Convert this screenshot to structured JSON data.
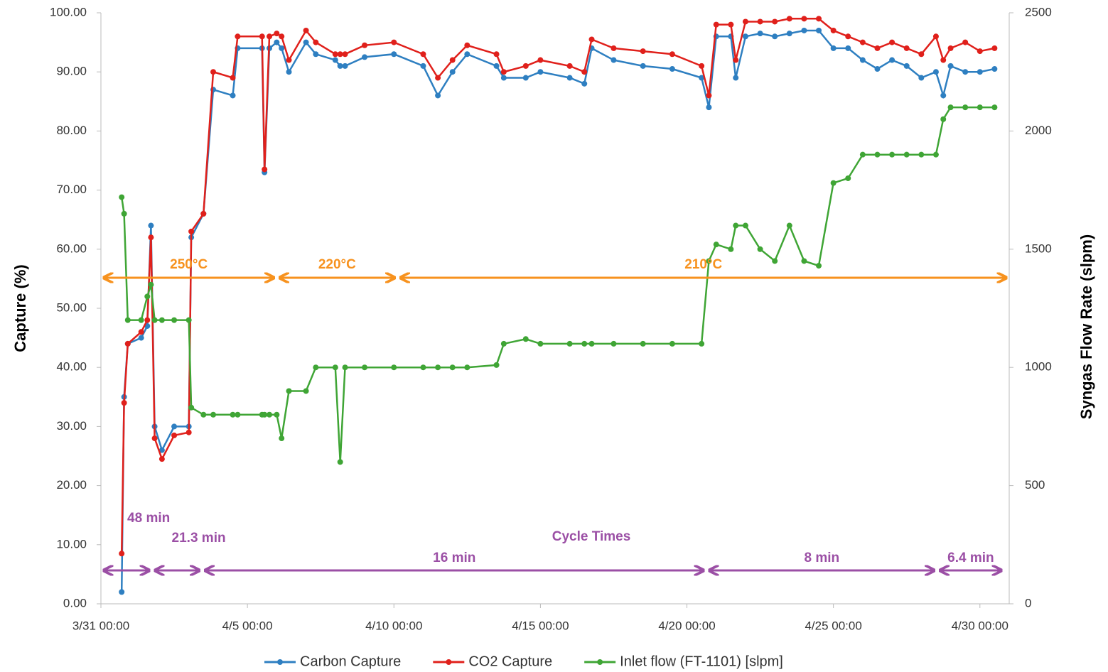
{
  "chart_data": {
    "type": "line",
    "y_label": "Capture (%)",
    "y2_label": "Syngas Flow Rate  (slpm)",
    "x": [
      "3/31 17:00",
      "3/31 19:00",
      "3/31 22:00",
      "4/1 09:00",
      "4/1 14:00",
      "4/1 17:00",
      "4/1 20:00",
      "4/2 02:00",
      "4/2 12:00",
      "4/3 00:00",
      "4/3 02:00",
      "4/3 12:00",
      "4/3 20:00",
      "4/4 12:00",
      "4/4 16:00",
      "4/5 12:00",
      "4/5 14:00",
      "4/5 18:00",
      "4/6 00:00",
      "4/6 04:00",
      "4/6 10:00",
      "4/7 00:00",
      "4/7 08:00",
      "4/8 00:00",
      "4/8 04:00",
      "4/8 08:00",
      "4/9 00:00",
      "4/10 00:00",
      "4/11 00:00",
      "4/11 12:00",
      "4/12 00:00",
      "4/12 12:00",
      "4/13 12:00",
      "4/13 18:00",
      "4/14 12:00",
      "4/15 00:00",
      "4/16 00:00",
      "4/16 12:00",
      "4/16 18:00",
      "4/17 12:00",
      "4/18 12:00",
      "4/19 12:00",
      "4/20 12:00",
      "4/20 18:00",
      "4/21 00:00",
      "4/21 12:00",
      "4/21 16:00",
      "4/22 00:00",
      "4/22 12:00",
      "4/23 00:00",
      "4/23 12:00",
      "4/24 00:00",
      "4/24 12:00",
      "4/25 00:00",
      "4/25 12:00",
      "4/26 00:00",
      "4/26 12:00",
      "4/27 00:00",
      "4/27 12:00",
      "4/28 00:00",
      "4/28 12:00",
      "4/28 18:00",
      "4/29 00:00",
      "4/29 12:00",
      "4/30 00:00",
      "4/30 12:00"
    ],
    "series": [
      {
        "name": "Carbon Capture",
        "color": "#2e7fc1",
        "values": [
          2,
          35,
          44,
          45,
          47,
          64,
          30,
          26,
          30,
          30,
          62,
          66,
          87,
          86,
          94,
          94,
          73,
          94,
          95,
          94,
          90,
          95,
          93,
          92,
          91,
          91,
          92.5,
          93,
          91,
          86,
          90,
          93,
          91,
          89,
          89,
          90,
          89,
          88,
          94,
          92,
          91,
          90.5,
          89,
          84,
          96,
          96,
          89,
          96,
          96.5,
          96,
          96.5,
          97,
          97,
          94,
          94,
          92,
          90.5,
          92,
          91,
          89,
          90,
          86,
          91,
          90,
          90,
          90.5
        ]
      },
      {
        "name": "CO2 Capture",
        "color": "#e0201b",
        "values": [
          8.5,
          34,
          44,
          46,
          48,
          62,
          28,
          24.5,
          28.5,
          29,
          63,
          66,
          90,
          89,
          96,
          96,
          73.5,
          96,
          96.5,
          96,
          92,
          97,
          95,
          93,
          93,
          93,
          94.5,
          95,
          93,
          89,
          92,
          94.5,
          93,
          90,
          91,
          92,
          91,
          90,
          95.5,
          94,
          93.5,
          93,
          91,
          86,
          98,
          98,
          92,
          98.5,
          98.5,
          98.5,
          99,
          99,
          99,
          97,
          96,
          95,
          94,
          95,
          94,
          93,
          96,
          92,
          94,
          95,
          93.5,
          94
        ]
      },
      {
        "name": "Inlet flow (FT-1101) [slpm]",
        "color": "#3fa535",
        "axis": "y2",
        "values": [
          1720,
          1650,
          1200,
          1200,
          1300,
          1350,
          1200,
          1200,
          1200,
          1200,
          830,
          800,
          800,
          800,
          800,
          800,
          800,
          800,
          800,
          700,
          900,
          900,
          1000,
          1000,
          600,
          1000,
          1000,
          1000,
          1000,
          1000,
          1000,
          1000,
          1010,
          1100,
          1120,
          1100,
          1100,
          1100,
          1100,
          1100,
          1100,
          1100,
          1100,
          1450,
          1520,
          1500,
          1600,
          1600,
          1500,
          1450,
          1600,
          1450,
          1430,
          1780,
          1800,
          1900,
          1900,
          1900,
          1900,
          1900,
          1900,
          2050,
          2100,
          2100,
          2100,
          2100
        ]
      }
    ],
    "xlim": [
      "3/31 00:00",
      "5/1 00:00"
    ],
    "xticks": [
      "3/31 00:00",
      "4/5 00:00",
      "4/10 00:00",
      "4/15 00:00",
      "4/20 00:00",
      "4/25 00:00",
      "4/30 00:00"
    ],
    "ylim": [
      0,
      100
    ],
    "yticks": [
      {
        "value": 0,
        "label": "0.00"
      },
      {
        "value": 10,
        "label": "10.00"
      },
      {
        "value": 20,
        "label": "20.00"
      },
      {
        "value": 30,
        "label": "30.00"
      },
      {
        "value": 40,
        "label": "40.00"
      },
      {
        "value": 50,
        "label": "50.00"
      },
      {
        "value": 60,
        "label": "60.00"
      },
      {
        "value": 70,
        "label": "70.00"
      },
      {
        "value": 80,
        "label": "80.00"
      },
      {
        "value": 90,
        "label": "90.00"
      },
      {
        "value": 100,
        "label": "100.00"
      }
    ],
    "y2lim": [
      0,
      2500
    ],
    "y2ticks": [
      0,
      500,
      1000,
      1500,
      2000,
      2500
    ],
    "temperature_spans": [
      {
        "text": "250°C",
        "start": "3/31 00:00",
        "end": "4/6 00:00"
      },
      {
        "text": "220°C",
        "start": "4/6 00:00",
        "end": "4/10 03:00"
      },
      {
        "text": "210°C",
        "start": "4/10 03:00",
        "end": "5/1 00:00"
      }
    ],
    "cycle_label": "Cycle Times",
    "cycle_spans": [
      {
        "text": "48 min",
        "start": "3/31 00:00",
        "end": "4/1 18:00"
      },
      {
        "text": "21.3 min",
        "start": "4/1 18:00",
        "end": "4/3 11:00"
      },
      {
        "text": "16 min",
        "start": "4/3 11:00",
        "end": "4/20 16:00"
      },
      {
        "text": "8 min",
        "start": "4/20 16:00",
        "end": "4/28 13:00"
      },
      {
        "text": "6.4 min",
        "start": "4/28 13:00",
        "end": "4/30 20:00"
      }
    ],
    "temperature_color": "#f7921e",
    "cycle_color": "#9b4fa5"
  }
}
